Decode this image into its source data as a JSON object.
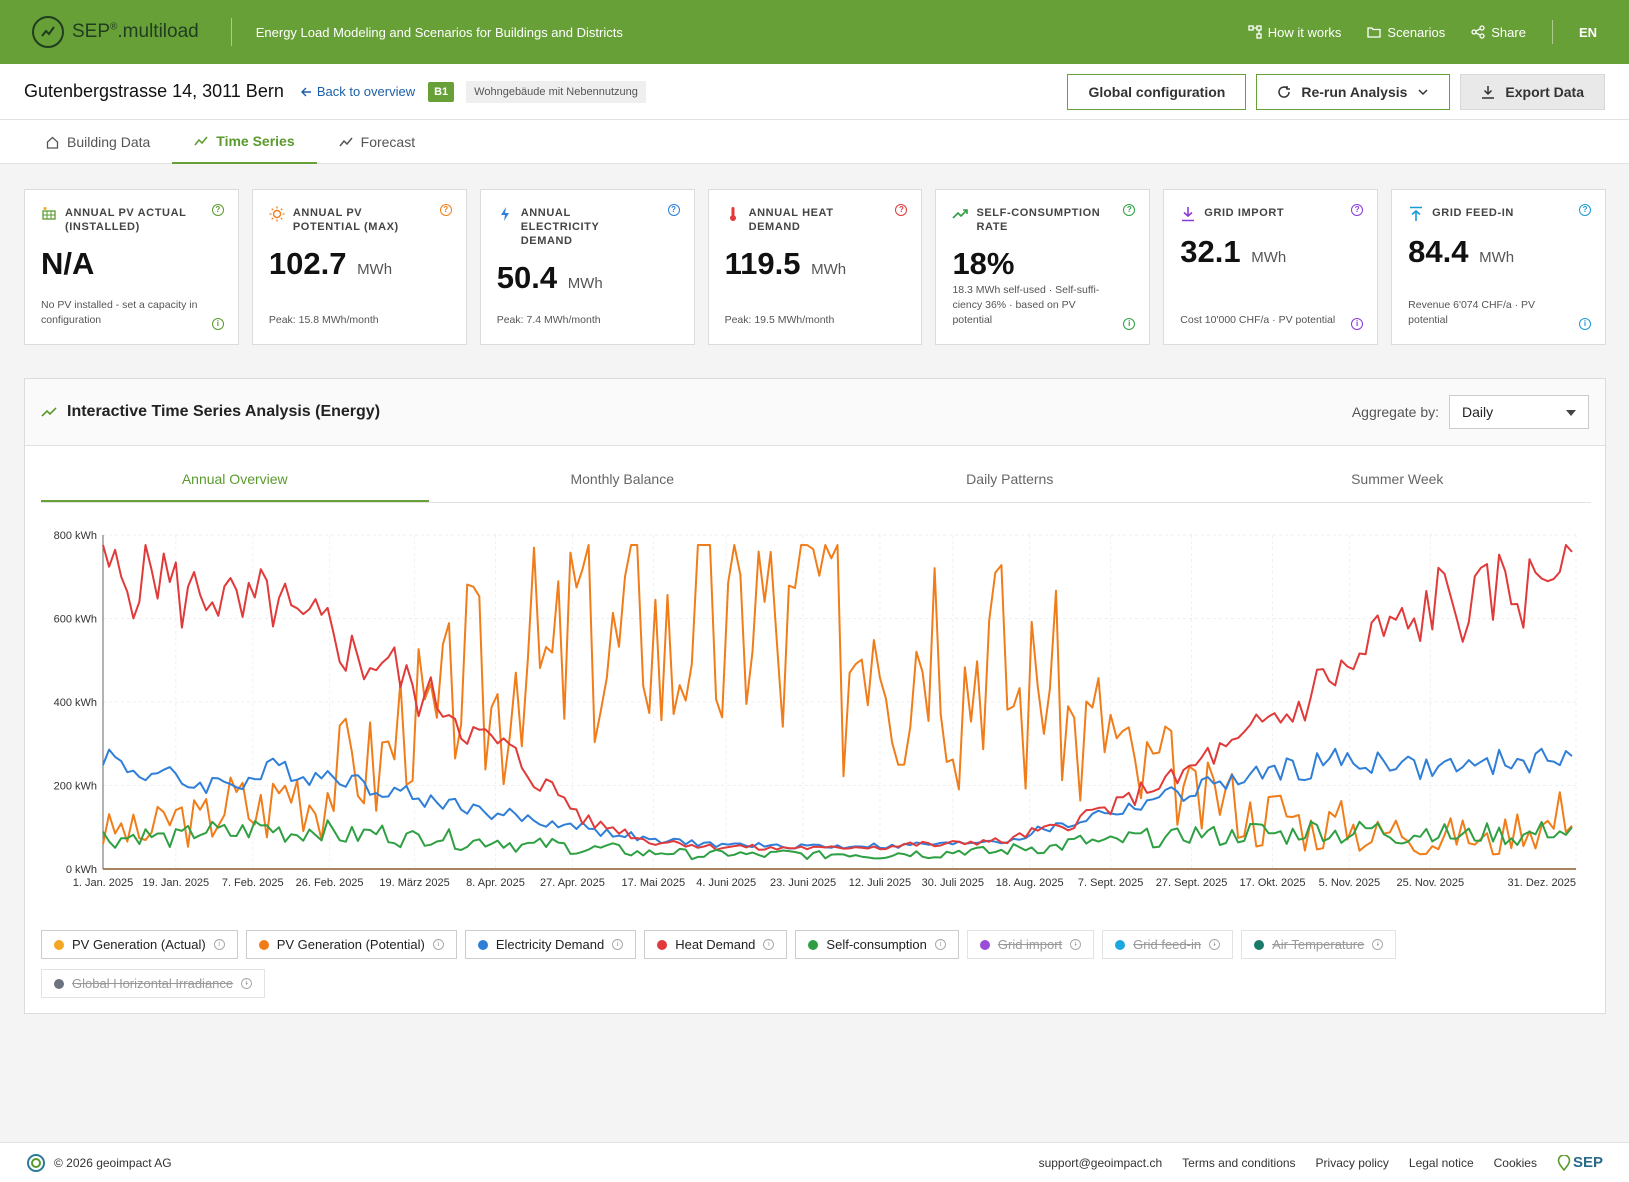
{
  "app": {
    "brand": "SEP",
    "brand_sup": "®",
    "brand_suffix": ".multiload",
    "tagline": "Energy Load Modeling and Scenarios for Buildings and Districts",
    "nav": [
      {
        "label": "How it works",
        "icon": "flow-icon"
      },
      {
        "label": "Scenarios",
        "icon": "folder-icon"
      },
      {
        "label": "Share",
        "icon": "share-icon"
      }
    ],
    "lang": "EN"
  },
  "header": {
    "address": "Gutenbergstrasse 14, 3011 Bern",
    "back_label": "Back to overview",
    "building_id": "B1",
    "building_type": "Wohngebäude mit Nebennutzung",
    "buttons": {
      "global_config": "Global configuration",
      "rerun": "Re-run Analysis",
      "export": "Export Data"
    }
  },
  "tabs": [
    {
      "label": "Building Data",
      "icon": "home-icon",
      "active": false
    },
    {
      "label": "Time Series",
      "icon": "trend-icon",
      "active": true
    },
    {
      "label": "Forecast",
      "icon": "trend-icon",
      "active": false
    }
  ],
  "kpis": [
    {
      "title": "ANNUAL PV ACTUAL (INSTALLED)",
      "value": "N/A",
      "unit": "",
      "sub": "No PV installed - set a capacity in configuration",
      "color": "#5a9a2e",
      "icon": "solar-panel-icon"
    },
    {
      "title": "ANNUAL PV POTENTIAL (MAX)",
      "value": "102.7",
      "unit": "MWh",
      "sub": "Peak: 15.8 MWh/month",
      "color": "#f07d1a",
      "icon": "sun-icon"
    },
    {
      "title": "ANNUAL ELECTRICITY DEMAND",
      "value": "50.4",
      "unit": "MWh",
      "sub": "Peak: 7.4 MWh/month",
      "color": "#2f7fd8",
      "icon": "bolt-icon"
    },
    {
      "title": "ANNUAL HEAT DEMAND",
      "value": "119.5",
      "unit": "MWh",
      "sub": "Peak: 19.5 MWh/month",
      "color": "#e03a3a",
      "icon": "thermometer-icon"
    },
    {
      "title": "SELF-CONSUMPTION RATE",
      "value": "18%",
      "unit": "",
      "sub": "18.3 MWh self-used · Self-suffi-ciency 36% · based on PV potential",
      "color": "#2ea043",
      "icon": "trend-up-icon"
    },
    {
      "title": "GRID IMPORT",
      "value": "32.1",
      "unit": "MWh",
      "sub": "Cost 10'000 CHF/a · PV potential",
      "color": "#8a3ad8",
      "icon": "download-icon"
    },
    {
      "title": "GRID FEED-IN",
      "value": "84.4",
      "unit": "MWh",
      "sub": "Revenue 6'074 CHF/a · PV potential",
      "color": "#1b9ad8",
      "icon": "upload-icon"
    }
  ],
  "panel": {
    "title": "Interactive Time Series Analysis (Energy)",
    "aggregate_label": "Aggregate by:",
    "aggregate_value": "Daily",
    "subtabs": [
      {
        "label": "Annual Overview",
        "active": true
      },
      {
        "label": "Monthly Balance",
        "active": false
      },
      {
        "label": "Daily Patterns",
        "active": false
      },
      {
        "label": "Summer Week",
        "active": false
      }
    ],
    "legend": [
      {
        "label": "PV Generation (Actual)",
        "color": "#f5a623",
        "enabled": true
      },
      {
        "label": "PV Generation (Potential)",
        "color": "#f07d1a",
        "enabled": true
      },
      {
        "label": "Electricity Demand",
        "color": "#2f7fd8",
        "enabled": true
      },
      {
        "label": "Heat Demand",
        "color": "#e03a3a",
        "enabled": true
      },
      {
        "label": "Self-consumption",
        "color": "#2ea043",
        "enabled": true
      },
      {
        "label": "Grid import",
        "color": "#9b4dd8",
        "enabled": false
      },
      {
        "label": "Grid feed-in",
        "color": "#1ba8e0",
        "enabled": false
      },
      {
        "label": "Air Temperature",
        "color": "#1a7a6a",
        "enabled": false
      },
      {
        "label": "Global Horizontal Irradiance",
        "color": "#6b7280",
        "enabled": false
      }
    ]
  },
  "chart_data": {
    "type": "line",
    "ylim": [
      0,
      800
    ],
    "yticks": [
      "0 kWh",
      "200 kWh",
      "400 kWh",
      "600 kWh",
      "800 kWh"
    ],
    "xticks": [
      "1. Jan. 2025",
      "19. Jan. 2025",
      "7. Feb. 2025",
      "26. Feb. 2025",
      "19. März 2025",
      "8. Apr. 2025",
      "27. Apr. 2025",
      "17. Mai 2025",
      "4. Juni 2025",
      "23. Juni 2025",
      "12. Juli 2025",
      "30. Juli 2025",
      "18. Aug. 2025",
      "7. Sept. 2025",
      "27. Sept. 2025",
      "17. Okt. 2025",
      "5. Nov. 2025",
      "25. Nov. 2025",
      "31. Dez. 2025"
    ],
    "xtick_days": [
      1,
      19,
      38,
      57,
      78,
      98,
      117,
      137,
      155,
      174,
      193,
      211,
      230,
      250,
      270,
      290,
      309,
      329,
      365
    ],
    "x": [
      1,
      15,
      30,
      45,
      60,
      75,
      90,
      105,
      120,
      135,
      150,
      165,
      180,
      195,
      210,
      225,
      240,
      255,
      270,
      285,
      300,
      315,
      330,
      345,
      365
    ],
    "series": [
      {
        "name": "PV Generation (Potential)",
        "color": "#f07d1a",
        "values": [
          80,
          100,
          140,
          170,
          220,
          320,
          420,
          480,
          560,
          580,
          600,
          590,
          610,
          600,
          560,
          480,
          380,
          260,
          180,
          140,
          110,
          90,
          80,
          70,
          150
        ]
      },
      {
        "name": "Electricity Demand",
        "color": "#2f7fd8",
        "values": [
          270,
          220,
          200,
          240,
          220,
          180,
          150,
          120,
          100,
          70,
          60,
          55,
          55,
          55,
          60,
          70,
          110,
          150,
          190,
          220,
          250,
          260,
          240,
          250,
          275
        ]
      },
      {
        "name": "Heat Demand",
        "color": "#e03a3a",
        "values": [
          720,
          700,
          640,
          620,
          540,
          460,
          350,
          250,
          120,
          70,
          55,
          50,
          50,
          55,
          60,
          70,
          110,
          170,
          240,
          320,
          420,
          540,
          630,
          650,
          750
        ]
      },
      {
        "name": "Self-consumption",
        "color": "#2ea043",
        "values": [
          80,
          75,
          90,
          95,
          85,
          80,
          70,
          60,
          50,
          40,
          35,
          35,
          35,
          35,
          40,
          45,
          60,
          70,
          80,
          85,
          90,
          90,
          85,
          80,
          90
        ]
      }
    ]
  },
  "footer": {
    "copyright": "© 2026 geoimpact AG",
    "links": [
      "support@geoimpact.ch",
      "Terms and conditions",
      "Privacy policy",
      "Legal notice",
      "Cookies"
    ],
    "logo": "SEP"
  }
}
